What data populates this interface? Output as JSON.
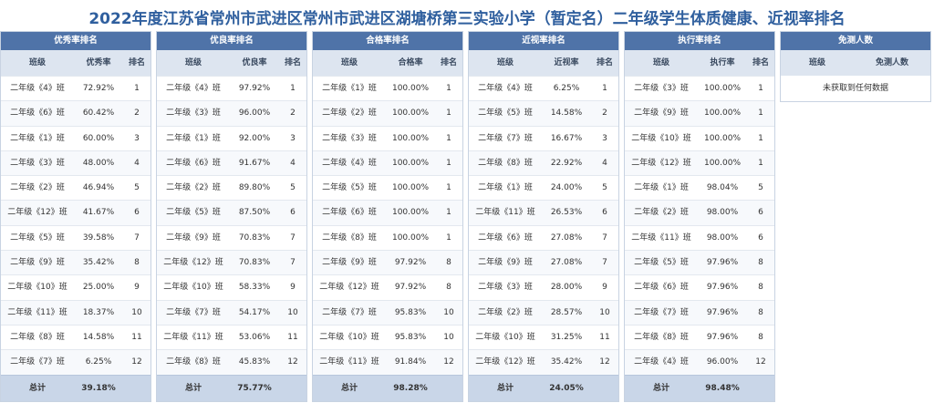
{
  "title": "2022年度江苏省常州市武进区常州市武进区湖塘桥第三实验小学（暂定名）二年级学生体质健康、近视率排名",
  "panels": [
    {
      "header": "优秀率排名",
      "cols": [
        "班级",
        "优秀率",
        "排名"
      ],
      "rows": [
        [
          "二年级《4》班",
          "72.92%",
          "1"
        ],
        [
          "二年级《6》班",
          "60.42%",
          "2"
        ],
        [
          "二年级《1》班",
          "60.00%",
          "3"
        ],
        [
          "二年级《3》班",
          "48.00%",
          "4"
        ],
        [
          "二年级《2》班",
          "46.94%",
          "5"
        ],
        [
          "二年级《12》班",
          "41.67%",
          "6"
        ],
        [
          "二年级《5》班",
          "39.58%",
          "7"
        ],
        [
          "二年级《9》班",
          "35.42%",
          "8"
        ],
        [
          "二年级《10》班",
          "25.00%",
          "9"
        ],
        [
          "二年级《11》班",
          "18.37%",
          "10"
        ],
        [
          "二年级《8》班",
          "14.58%",
          "11"
        ],
        [
          "二年级《7》班",
          "6.25%",
          "12"
        ]
      ],
      "total_label": "总计",
      "total_value": "39.18%"
    },
    {
      "header": "优良率排名",
      "cols": [
        "班级",
        "优良率",
        "排名"
      ],
      "rows": [
        [
          "二年级《4》班",
          "97.92%",
          "1"
        ],
        [
          "二年级《3》班",
          "96.00%",
          "2"
        ],
        [
          "二年级《1》班",
          "92.00%",
          "3"
        ],
        [
          "二年级《6》班",
          "91.67%",
          "4"
        ],
        [
          "二年级《2》班",
          "89.80%",
          "5"
        ],
        [
          "二年级《5》班",
          "87.50%",
          "6"
        ],
        [
          "二年级《9》班",
          "70.83%",
          "7"
        ],
        [
          "二年级《12》班",
          "70.83%",
          "7"
        ],
        [
          "二年级《10》班",
          "58.33%",
          "9"
        ],
        [
          "二年级《7》班",
          "54.17%",
          "10"
        ],
        [
          "二年级《11》班",
          "53.06%",
          "11"
        ],
        [
          "二年级《8》班",
          "45.83%",
          "12"
        ]
      ],
      "total_label": "总计",
      "total_value": "75.77%"
    },
    {
      "header": "合格率排名",
      "cols": [
        "班级",
        "合格率",
        "排名"
      ],
      "rows": [
        [
          "二年级《1》班",
          "100.00%",
          "1"
        ],
        [
          "二年级《2》班",
          "100.00%",
          "1"
        ],
        [
          "二年级《3》班",
          "100.00%",
          "1"
        ],
        [
          "二年级《4》班",
          "100.00%",
          "1"
        ],
        [
          "二年级《5》班",
          "100.00%",
          "1"
        ],
        [
          "二年级《6》班",
          "100.00%",
          "1"
        ],
        [
          "二年级《8》班",
          "100.00%",
          "1"
        ],
        [
          "二年级《9》班",
          "97.92%",
          "8"
        ],
        [
          "二年级《12》班",
          "97.92%",
          "8"
        ],
        [
          "二年级《7》班",
          "95.83%",
          "10"
        ],
        [
          "二年级《10》班",
          "95.83%",
          "10"
        ],
        [
          "二年级《11》班",
          "91.84%",
          "12"
        ]
      ],
      "total_label": "总计",
      "total_value": "98.28%"
    },
    {
      "header": "近视率排名",
      "cols": [
        "班级",
        "近视率",
        "排名"
      ],
      "rows": [
        [
          "二年级《4》班",
          "6.25%",
          "1"
        ],
        [
          "二年级《5》班",
          "14.58%",
          "2"
        ],
        [
          "二年级《7》班",
          "16.67%",
          "3"
        ],
        [
          "二年级《8》班",
          "22.92%",
          "4"
        ],
        [
          "二年级《1》班",
          "24.00%",
          "5"
        ],
        [
          "二年级《11》班",
          "26.53%",
          "6"
        ],
        [
          "二年级《6》班",
          "27.08%",
          "7"
        ],
        [
          "二年级《9》班",
          "27.08%",
          "7"
        ],
        [
          "二年级《3》班",
          "28.00%",
          "9"
        ],
        [
          "二年级《2》班",
          "28.57%",
          "10"
        ],
        [
          "二年级《10》班",
          "31.25%",
          "11"
        ],
        [
          "二年级《12》班",
          "35.42%",
          "12"
        ]
      ],
      "total_label": "总计",
      "total_value": "24.05%"
    },
    {
      "header": "执行率排名",
      "cols": [
        "班级",
        "执行率",
        "排名"
      ],
      "rows": [
        [
          "二年级《3》班",
          "100.00%",
          "1"
        ],
        [
          "二年级《9》班",
          "100.00%",
          "1"
        ],
        [
          "二年级《10》班",
          "100.00%",
          "1"
        ],
        [
          "二年级《12》班",
          "100.00%",
          "1"
        ],
        [
          "二年级《1》班",
          "98.04%",
          "5"
        ],
        [
          "二年级《2》班",
          "98.00%",
          "6"
        ],
        [
          "二年级《11》班",
          "98.00%",
          "6"
        ],
        [
          "二年级《5》班",
          "97.96%",
          "8"
        ],
        [
          "二年级《6》班",
          "97.96%",
          "8"
        ],
        [
          "二年级《7》班",
          "97.96%",
          "8"
        ],
        [
          "二年级《8》班",
          "97.96%",
          "8"
        ],
        [
          "二年级《4》班",
          "96.00%",
          "12"
        ]
      ],
      "total_label": "总计",
      "total_value": "98.48%"
    }
  ],
  "exempt": {
    "header": "免测人数",
    "cols": [
      "班级",
      "免测人数"
    ],
    "empty_text": "未获取到任何数据"
  },
  "colors": {
    "header_bg": "#4f73a8",
    "colhead_bg": "#dde5f0",
    "total_bg": "#c9d6e8",
    "title_color": "#2f5f9e"
  }
}
